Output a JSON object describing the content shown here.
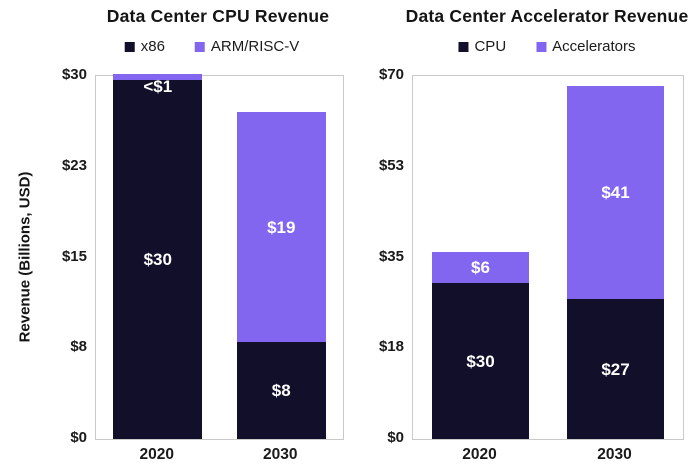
{
  "figure": {
    "background": "#ffffff",
    "text_color": "#1a1a1a",
    "axis_border_color": "#c9c9c9",
    "bar_label_color": "#ffffff",
    "dark_series_color": "#110f29",
    "purple_series_color": "#8266ef"
  },
  "chart_data": [
    {
      "type": "bar",
      "stacked": true,
      "title": "Data Center CPU Revenue",
      "ylabel": "Revenue (Billions, USD)",
      "xlabel": "",
      "categories": [
        "2020",
        "2030"
      ],
      "series": [
        {
          "name": "x86",
          "color": "#110f29",
          "values": [
            30,
            8
          ],
          "value_labels": [
            "$30",
            "$8"
          ]
        },
        {
          "name": "ARM/RISC-V",
          "color": "#8266ef",
          "values": [
            0.5,
            19
          ],
          "value_labels": [
            "<$1",
            "$19"
          ]
        }
      ],
      "ylim": [
        0,
        30
      ],
      "yticks": [
        {
          "value": 0,
          "label": "$0"
        },
        {
          "value": 7.5,
          "label": "$8"
        },
        {
          "value": 15,
          "label": "$15"
        },
        {
          "value": 22.5,
          "label": "$23"
        },
        {
          "value": 30,
          "label": "$30"
        }
      ],
      "legend_position": "top",
      "grid": false
    },
    {
      "type": "bar",
      "stacked": true,
      "title": "Data Center Accelerator Revenue",
      "ylabel": "",
      "xlabel": "",
      "categories": [
        "2020",
        "2030"
      ],
      "series": [
        {
          "name": "CPU",
          "color": "#110f29",
          "values": [
            30,
            27
          ],
          "value_labels": [
            "$30",
            "$27"
          ]
        },
        {
          "name": "Accelerators",
          "color": "#8266ef",
          "values": [
            6,
            41
          ],
          "value_labels": [
            "$6",
            "$41"
          ]
        }
      ],
      "ylim": [
        0,
        70
      ],
      "yticks": [
        {
          "value": 0,
          "label": "$0"
        },
        {
          "value": 17.5,
          "label": "$18"
        },
        {
          "value": 35,
          "label": "$35"
        },
        {
          "value": 52.5,
          "label": "$53"
        },
        {
          "value": 70,
          "label": "$70"
        }
      ],
      "legend_position": "top",
      "grid": false
    }
  ]
}
